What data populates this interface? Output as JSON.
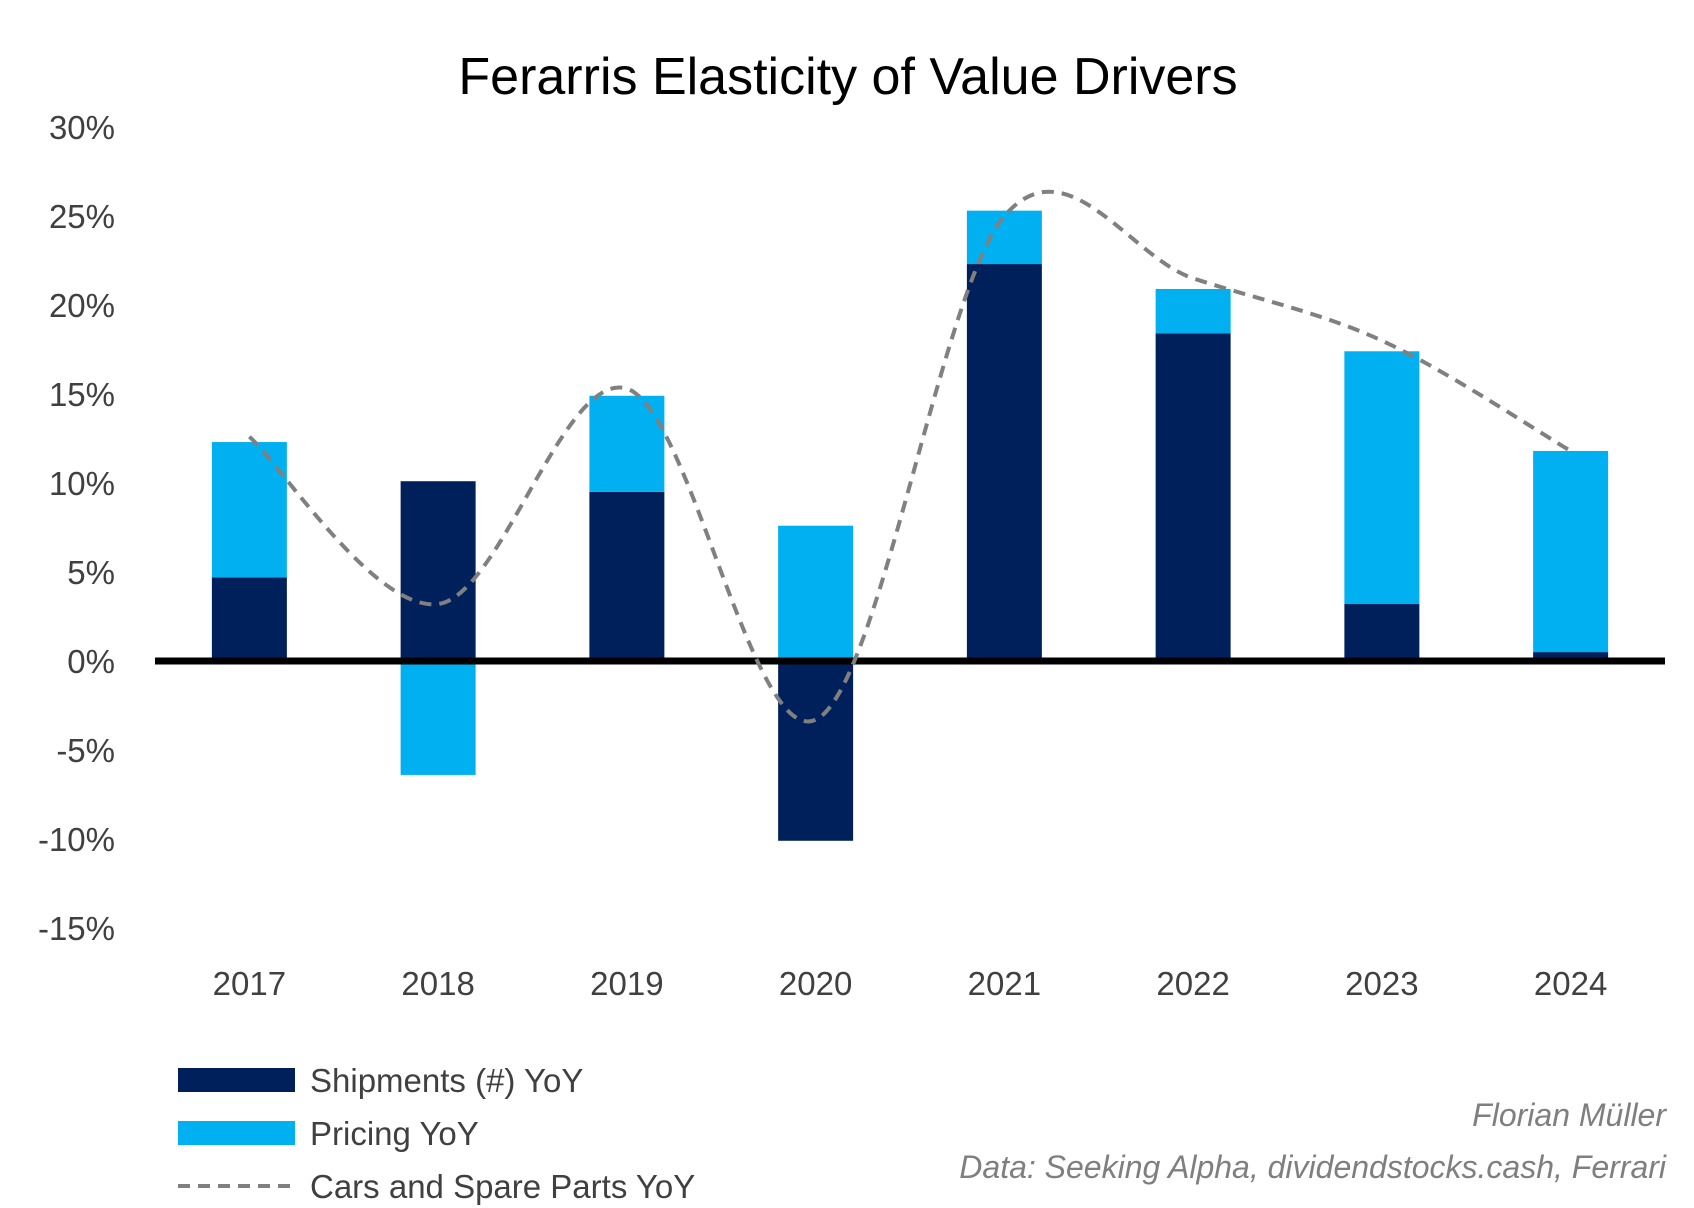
{
  "chart_data": {
    "type": "bar",
    "title": "Ferarris Elasticity of Value Drivers",
    "categories": [
      "2017",
      "2018",
      "2019",
      "2020",
      "2021",
      "2022",
      "2023",
      "2024"
    ],
    "series": [
      {
        "name": "Shipments (#) YoY",
        "kind": "stacked-bar",
        "color": "#00205b",
        "values": [
          4.7,
          10.1,
          9.5,
          -10.1,
          22.3,
          18.4,
          3.2,
          0.5
        ]
      },
      {
        "name": "Pricing YoY",
        "kind": "stacked-bar",
        "color": "#00b0f0",
        "values": [
          7.6,
          -6.4,
          5.4,
          7.6,
          3.0,
          2.5,
          14.2,
          11.3
        ]
      },
      {
        "name": "Cars and Spare Parts YoY",
        "kind": "smoothed-dashed-line",
        "color": "#808080",
        "values": [
          12.6,
          3.2,
          15.3,
          -3.3,
          25.0,
          21.5,
          18.0,
          11.8
        ]
      }
    ],
    "ylim": [
      -15,
      30
    ],
    "yticks": [
      30,
      25,
      20,
      15,
      10,
      5,
      0,
      -5,
      -10,
      -15
    ],
    "ytick_labels": [
      "30%",
      "25%",
      "20%",
      "15%",
      "10%",
      "5%",
      "0%",
      "-5%",
      "-10%",
      "-15%"
    ],
    "xlabel": "",
    "ylabel": "",
    "grid": false,
    "legend_position": "bottom-left"
  },
  "credits": {
    "author": "Florian Müller",
    "source": "Data: Seeking Alpha, dividendstocks.cash, Ferrari"
  }
}
